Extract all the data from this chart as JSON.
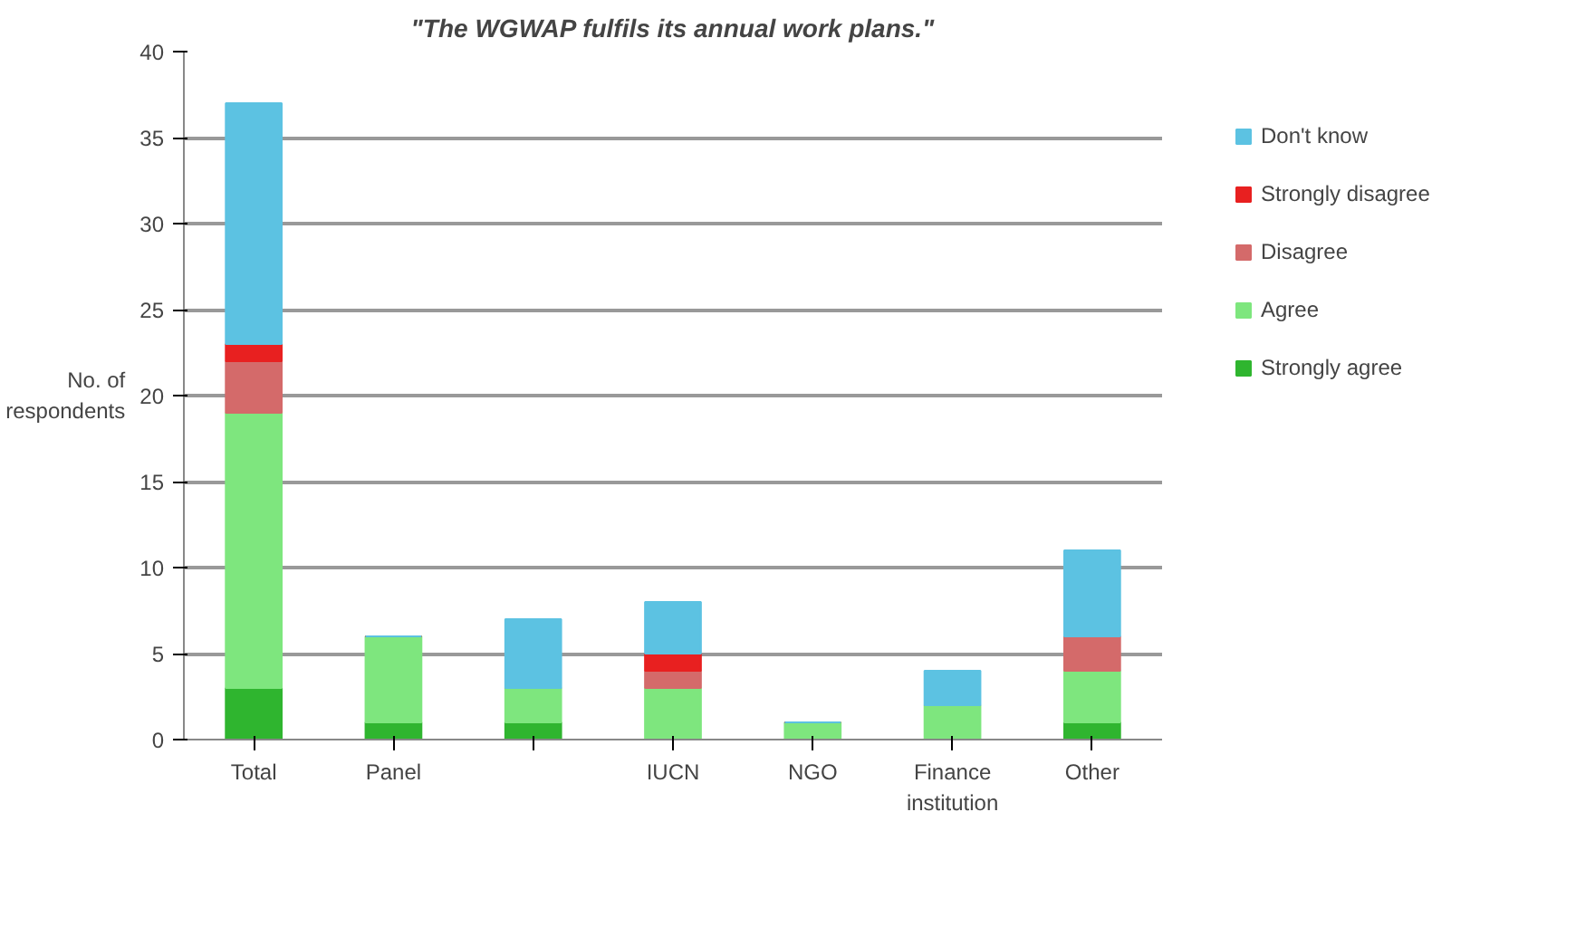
{
  "chart_data": {
    "type": "bar",
    "stacked": true,
    "title": "\"The WGWAP fulfils its annual work plans.\"",
    "ylabel": "No. of respondents",
    "categories": [
      "Total",
      "Panel",
      null,
      "IUCN",
      "NGO",
      "Finance institution",
      "Other"
    ],
    "series": [
      {
        "name": "Strongly agree",
        "color": "#2fb52f",
        "values": [
          3,
          1,
          1,
          0,
          0,
          0,
          1
        ]
      },
      {
        "name": "Agree",
        "color": "#7ee67e",
        "values": [
          16,
          5,
          2,
          3,
          1,
          2,
          3
        ]
      },
      {
        "name": "Disagree",
        "color": "#d46a6a",
        "values": [
          3,
          0,
          0,
          1,
          0,
          0,
          2
        ]
      },
      {
        "name": "Strongly disagree",
        "color": "#e82020",
        "values": [
          1,
          0,
          0,
          1,
          0,
          0,
          0
        ]
      },
      {
        "name": "Don't know",
        "color": "#5cc2e2",
        "values": [
          14,
          0,
          4,
          3,
          0,
          2,
          5
        ]
      }
    ],
    "ylim": [
      0,
      40
    ],
    "yticks": [
      0,
      5,
      10,
      15,
      20,
      25,
      30,
      35,
      40
    ],
    "grid": "y",
    "legend": "right"
  }
}
